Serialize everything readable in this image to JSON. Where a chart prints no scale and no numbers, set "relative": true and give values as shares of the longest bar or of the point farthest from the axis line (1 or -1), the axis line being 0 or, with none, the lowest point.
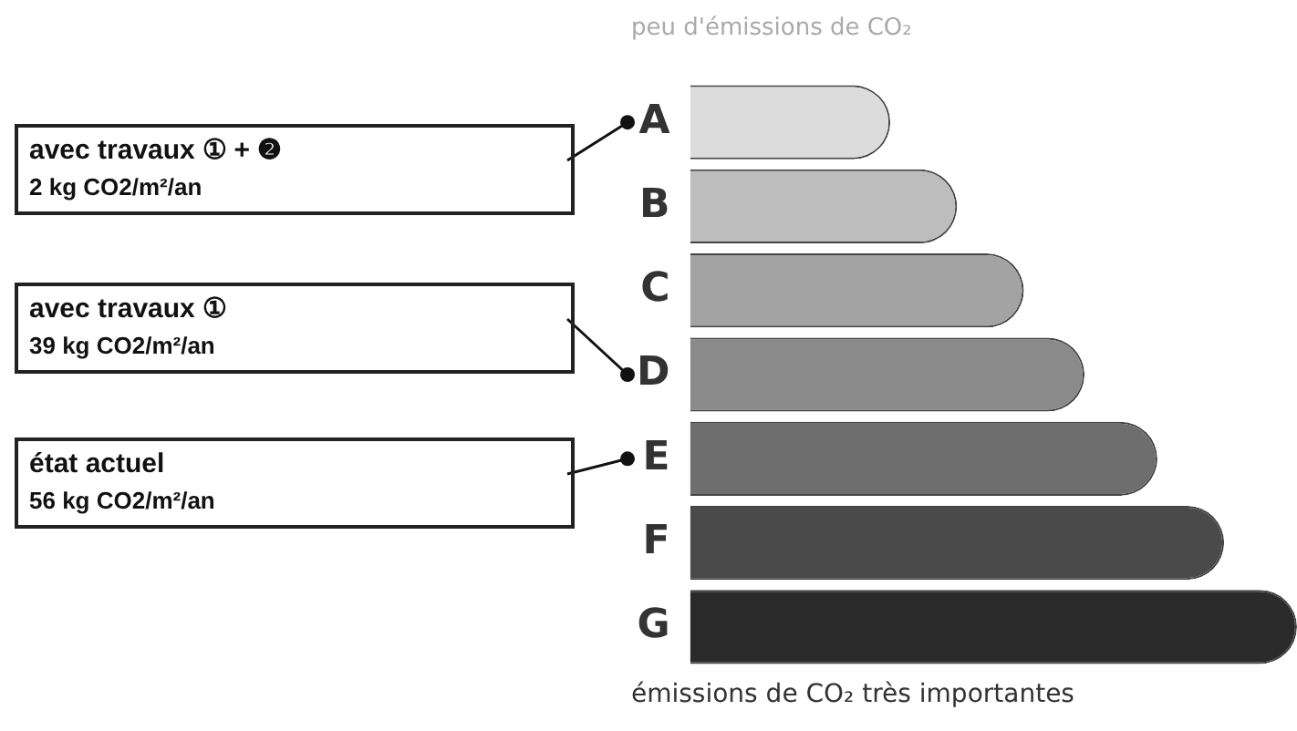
{
  "chart_data": {
    "type": "bar",
    "orientation": "horizontal",
    "relative": true,
    "title": "peu d'émissions de CO₂",
    "categories": [
      "A",
      "B",
      "C",
      "D",
      "E",
      "F",
      "G"
    ],
    "values": [
      0.33,
      0.44,
      0.55,
      0.65,
      0.77,
      0.88,
      1
    ],
    "colors": [
      "#dcdcdc",
      "#bdbdbd",
      "#a3a3a3",
      "#8a8a8a",
      "#6e6e6e",
      "#4a4a4a",
      "#2a2a2a"
    ],
    "annotations": [
      "avec travaux ① + ❷\n2 kg CO2/m²/an",
      "avec travaux ①\n39 kg CO2/m²/an",
      "état actuel\n56 kg CO2/m²/an",
      "émissions de CO₂ très importantes"
    ],
    "legend": false
  }
}
